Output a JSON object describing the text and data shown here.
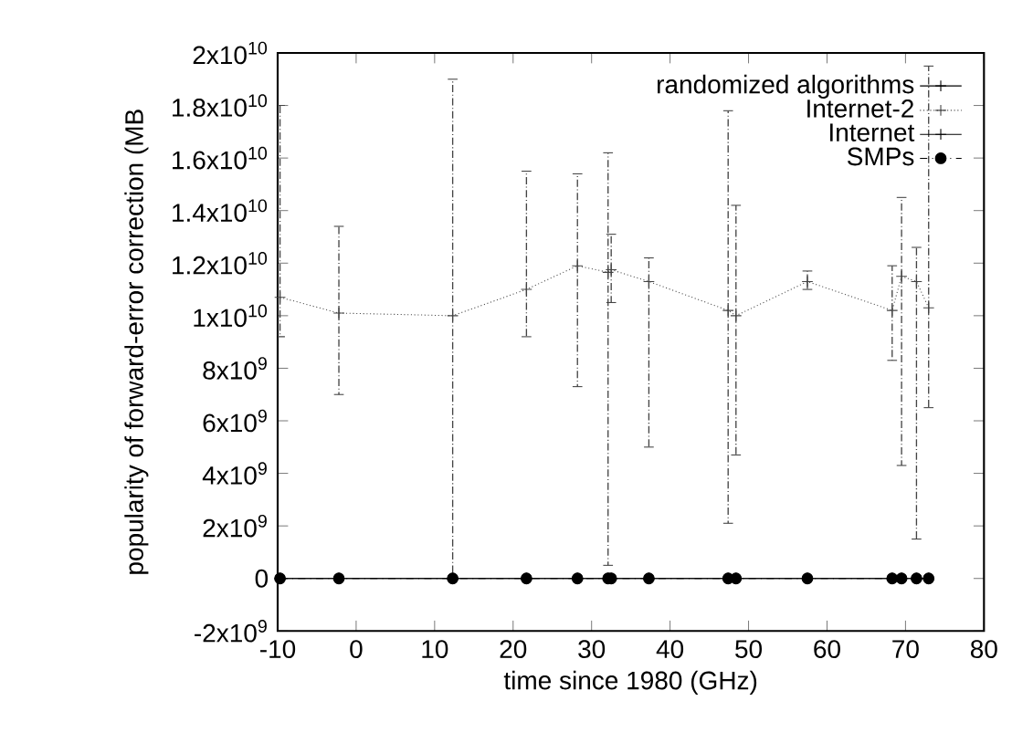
{
  "chart_data": {
    "type": "line",
    "xlabel": "time since 1980 (GHz)",
    "ylabel": "popularity of forward-error correction  (MB",
    "x": [
      -9.7,
      -2.2,
      12.3,
      21.7,
      28.2,
      32.1,
      32.5,
      37.3,
      47.4,
      48.4,
      57.5,
      68.3,
      69.5,
      71.4,
      72.95
    ],
    "series": [
      {
        "name": "randomized algorithms",
        "color": "#000000",
        "marker": "cross",
        "line_style": "solid",
        "values": [
          0,
          0,
          0,
          0,
          0,
          0,
          0,
          0,
          0,
          0,
          0,
          0,
          0,
          0,
          0
        ]
      },
      {
        "name": "Internet-2",
        "color": "#444444",
        "marker": "cross",
        "line_style": "dotted",
        "values": [
          10700000000.0,
          10100000000.0,
          10000000000.0,
          11000000000.0,
          11900000000.0,
          11650000000.0,
          11750000000.0,
          11300000000.0,
          10200000000.0,
          10000000000.0,
          11300000000.0,
          10200000000.0,
          11500000000.0,
          11300000000.0,
          10300000000.0
        ],
        "errors": [
          [
            9200000000.0,
            18000000000.0
          ],
          [
            7000000000.0,
            13400000000.0
          ],
          [
            0,
            19000000000.0
          ],
          [
            9200000000.0,
            15500000000.0
          ],
          [
            7300000000.0,
            15400000000.0
          ],
          [
            500000000.0,
            16200000000.0
          ],
          [
            10500000000.0,
            13100000000.0
          ],
          [
            5000000000.0,
            12200000000.0
          ],
          [
            2100000000.0,
            17800000000.0
          ],
          [
            4700000000.0,
            14200000000.0
          ],
          [
            11000000000.0,
            11700000000.0
          ],
          [
            8300000000.0,
            11900000000.0
          ],
          [
            4300000000.0,
            14500000000.0
          ],
          [
            1500000000.0,
            12600000000.0
          ],
          [
            6500000000.0,
            19500000000.0
          ]
        ]
      },
      {
        "name": "Internet",
        "color": "#000000",
        "marker": "cross",
        "line_style": "solid",
        "values": [
          0,
          0,
          0,
          0,
          0,
          0,
          0,
          0,
          0,
          0,
          0,
          0,
          0,
          0,
          0
        ]
      },
      {
        "name": "SMPs",
        "color": "#000000",
        "marker": "circle",
        "line_style": "dashed",
        "values": [
          0,
          0,
          0,
          0,
          0,
          0,
          0,
          0,
          0,
          0,
          0,
          0,
          0,
          0,
          0
        ]
      }
    ],
    "xlim": [
      -10,
      80
    ],
    "xticks": [
      -10,
      0,
      10,
      20,
      30,
      40,
      50,
      60,
      70,
      80
    ],
    "ylim": [
      -2000000000.0,
      20000000000.0
    ],
    "yticks": [
      {
        "value": -2000000000.0,
        "label": "-2x10$^{9}$"
      },
      0,
      {
        "value": 2000000000.0,
        "label": "2x10$^{9}$"
      },
      {
        "value": 4000000000.0,
        "label": "4x10$^{9}$"
      },
      {
        "value": 6000000000.0,
        "label": "6x10$^{9}$"
      },
      {
        "value": 8000000000.0,
        "label": "8x10$^{9}$"
      },
      {
        "value": 10000000000.0,
        "label": "1x10$^{10}$"
      },
      {
        "value": 12000000000.0,
        "label": "1.2x10$^{10}$"
      },
      {
        "value": 14000000000.0,
        "label": "1.4x10$^{10}$"
      },
      {
        "value": 16000000000.0,
        "label": "1.6x10$^{10}$"
      },
      {
        "value": 18000000000.0,
        "label": "1.8x10$^{10}$"
      },
      {
        "value": 20000000000.0,
        "label": "2x10$^{10}$"
      }
    ],
    "legend": "top right",
    "grid": false
  }
}
